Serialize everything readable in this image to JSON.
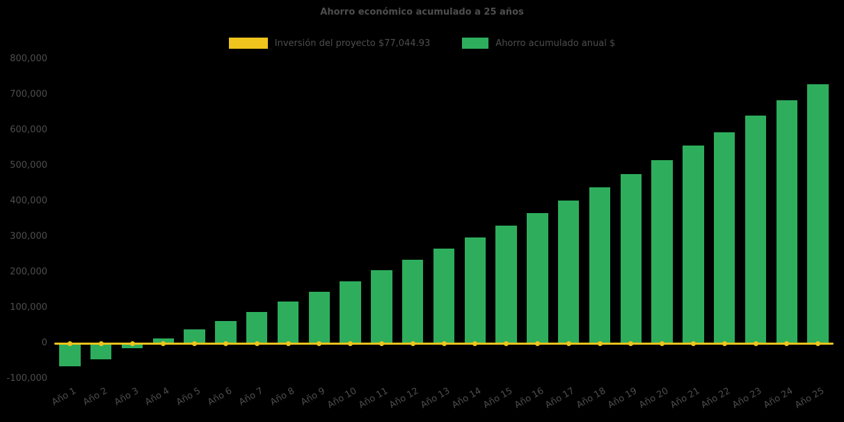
{
  "chart_data": {
    "type": "bar",
    "title": "Ahorro económico acumulado a 25 años",
    "background": "#000000",
    "text_color": "#4e4e4e",
    "grid": false,
    "legend_position": "top-center",
    "x_tick_rotation": -30,
    "ylim": [
      -100000,
      800000
    ],
    "ytick_step": 100000,
    "categories": [
      "Año 1",
      "Año 2",
      "Año 3",
      "Año 4",
      "Año 5",
      "Año 6",
      "Año 7",
      "Año 8",
      "Año 9",
      "Año 10",
      "Año 11",
      "Año 12",
      "Año 13",
      "Año 14",
      "Año 15",
      "Año 16",
      "Año 17",
      "Año 18",
      "Año 19",
      "Año 20",
      "Año 21",
      "Año 22",
      "Año 23",
      "Año 24",
      "Año 25"
    ],
    "series": [
      {
        "name": "Inversión del proyecto $77,044.93",
        "type": "line",
        "color": "#eec41d",
        "values": [
          0,
          0,
          0,
          0,
          0,
          0,
          0,
          0,
          0,
          0,
          0,
          0,
          0,
          0,
          0,
          0,
          0,
          0,
          0,
          0,
          0,
          0,
          0,
          0,
          0
        ]
      },
      {
        "name": "Ahorro acumulado anual $",
        "type": "bar",
        "color": "#2eae5c",
        "values": [
          -65000,
          -45000,
          -13000,
          14000,
          40000,
          62000,
          88000,
          118000,
          145000,
          175000,
          205000,
          236000,
          267000,
          298000,
          331000,
          366000,
          401000,
          440000,
          477000,
          515000,
          556000,
          595000,
          641000,
          684000,
          729000
        ]
      }
    ]
  }
}
